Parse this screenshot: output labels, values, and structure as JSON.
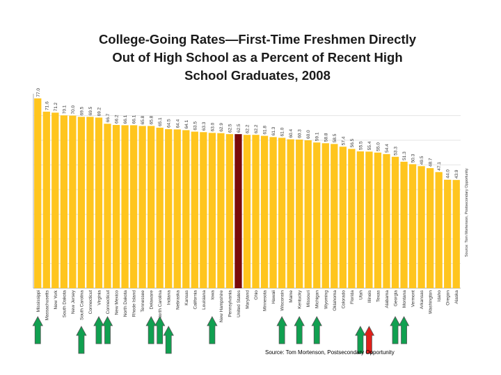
{
  "title_lines": [
    "College-Going Rates—First-Time Freshmen Directly",
    "Out of  High School as a Percent of Recent High",
    "School Graduates, 2008"
  ],
  "source_note": "Source:  Tom Mortenson, Postsecondary Opportunity",
  "side_note": "Source: Tom Mortenson, Postsecondary Opportunity",
  "colors": {
    "bar": "#FFC51E",
    "highlight": "#7A0A0A",
    "arrow_green": "#10A050",
    "arrow_red": "#E0201A",
    "grid": "#CCCCCC"
  },
  "chart_data": {
    "type": "bar",
    "title": "College-Going Rates—First-Time Freshmen Directly Out of High School as a Percent of Recent High School Graduates, 2008",
    "xlabel": "",
    "ylabel": "",
    "ylim": [
      0,
      80
    ],
    "grid": true,
    "highlight_category": "United States",
    "categories": [
      "Mississippi",
      "Massachusetts",
      "New York",
      "South Dakota",
      "New Jersey",
      "South Carolina",
      "Connecticut",
      "Virginia",
      "Connecticut",
      "New Mexico",
      "North Dakota",
      "Rhode Island",
      "Tennessee",
      "Delaware",
      "North Carolina",
      "Indiana",
      "Nebraska",
      "Kansas",
      "California",
      "Louisiana",
      "Iowa",
      "New Hampshire",
      "Pennsylvania",
      "United States",
      "Maryland",
      "Ohio",
      "Minnesota",
      "Hawaii",
      "Wisconsin",
      "Maine",
      "Kentucky",
      "Missouri",
      "Michigan",
      "Wyoming",
      "Oklahoma",
      "Colorado",
      "Florida",
      "Utah",
      "Illinois",
      "Texas",
      "Alabama",
      "Georgia",
      "Montana",
      "Vermont",
      "Arkansas",
      "Washington",
      "Idaho",
      "Oregon",
      "Alaska"
    ],
    "values": [
      77.0,
      71.6,
      71.2,
      70.1,
      70.0,
      69.5,
      69.5,
      69.2,
      66.7,
      66.2,
      66.1,
      66.1,
      65.8,
      65.8,
      65.1,
      64.5,
      64.4,
      64.1,
      63.5,
      63.3,
      63.0,
      62.9,
      62.5,
      62.5,
      62.2,
      62.2,
      61.8,
      61.3,
      61.0,
      60.4,
      60.3,
      60.0,
      59.1,
      58.8,
      58.5,
      57.4,
      56.5,
      55.5,
      55.4,
      55.0,
      54.4,
      53.3,
      51.3,
      50.3,
      49.5,
      48.7,
      47.1,
      44.0,
      43.9
    ],
    "bar_labels": [
      "77.0",
      "71.6",
      "71.2",
      "70.1",
      "70.0",
      "69.5",
      "69.5",
      "69.2",
      "66.7",
      "66.2",
      "66.1",
      "66.1",
      "65.8",
      "65.8",
      "65.1",
      "64.5",
      "64.4",
      "64.1",
      "63.5",
      "63.3",
      "63.0",
      "62.9",
      "62.5",
      "62.5",
      "62.2",
      "62.2",
      "61.8",
      "61.3",
      "61.0",
      "60.4",
      "60.3",
      "60.0",
      "59.1",
      "58.8",
      "58.5",
      "57.4",
      "56.5",
      "55.5",
      "55.4",
      "55.0",
      "54.4",
      "53.3",
      "51.3",
      "50.3",
      "49.5",
      "48.7",
      "47.1",
      "44.0",
      "43.9"
    ]
  },
  "marker_arrows": [
    {
      "category_index": 0,
      "level": 1,
      "color": "green"
    },
    {
      "category_index": 5,
      "level": 2,
      "color": "green"
    },
    {
      "category_index": 7,
      "level": 1,
      "color": "green"
    },
    {
      "category_index": 8,
      "level": 1,
      "color": "green"
    },
    {
      "category_index": 13,
      "level": 1,
      "color": "green"
    },
    {
      "category_index": 14,
      "level": 1,
      "color": "green"
    },
    {
      "category_index": 15,
      "level": 2,
      "color": "green"
    },
    {
      "category_index": 20,
      "level": 1,
      "color": "green"
    },
    {
      "category_index": 28,
      "level": 1,
      "color": "green"
    },
    {
      "category_index": 30,
      "level": 1,
      "color": "green"
    },
    {
      "category_index": 32,
      "level": 1,
      "color": "green"
    },
    {
      "category_index": 37,
      "level": 2,
      "color": "green"
    },
    {
      "category_index": 38,
      "level": 2,
      "color": "red"
    },
    {
      "category_index": 41,
      "level": 1,
      "color": "green"
    },
    {
      "category_index": 42,
      "level": 1,
      "color": "green"
    }
  ]
}
